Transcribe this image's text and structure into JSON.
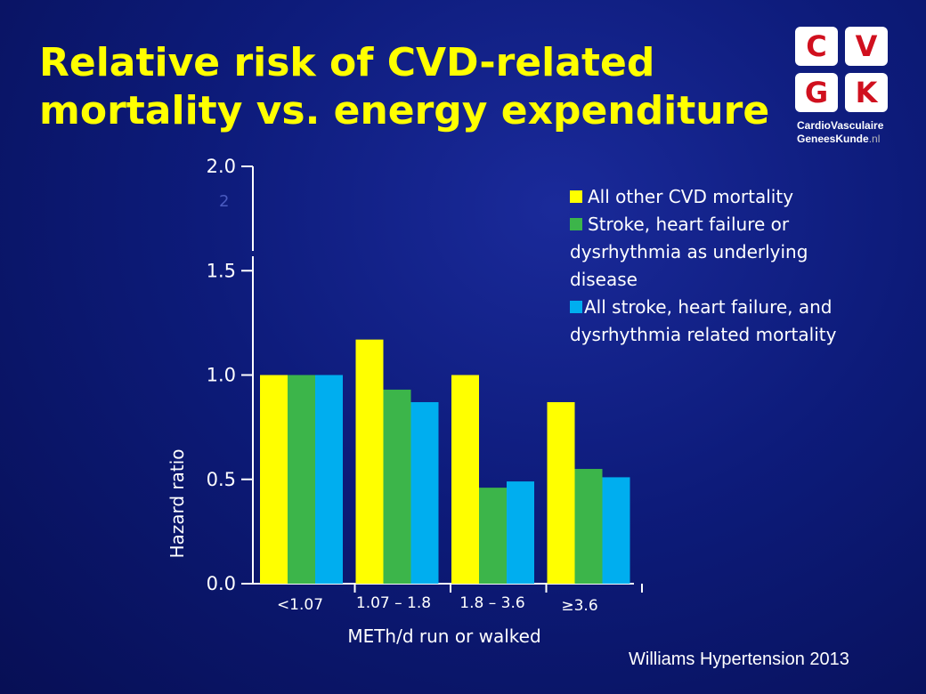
{
  "slide": {
    "title_line1": "Relative risk of CVD-related",
    "title_line2": "mortality vs. energy expenditure",
    "source": "Williams Hypertension 2013"
  },
  "logo": {
    "tiles": [
      "C",
      "V",
      "G",
      "K"
    ],
    "line1": "CardioVasculaire",
    "line2": "GeneesKunde",
    "line2_suffix": ".nl"
  },
  "chart_data": {
    "type": "bar",
    "categories": [
      "<1.07",
      "1.07 – 1.8",
      "1.8 – 3.6",
      "≥3.6"
    ],
    "series": [
      {
        "name": "All other CVD mortality",
        "color": "#ffff00",
        "values": [
          1.0,
          1.17,
          1.0,
          0.87
        ]
      },
      {
        "name": "Stroke, heart failure or dysrhythmia as underlying disease",
        "color": "#3cb54a",
        "values": [
          1.0,
          0.93,
          0.46,
          0.55
        ]
      },
      {
        "name": "All stroke, heart failure, and dysrhythmia related mortality",
        "color": "#00aeef",
        "values": [
          1.0,
          0.87,
          0.49,
          0.51
        ]
      }
    ],
    "legend": {
      "line1": "All other CVD mortality",
      "line2a": "Stroke, heart failure or",
      "line2b": "dysrhythmia as underlying",
      "line2c": "disease",
      "line3a": "All stroke, heart failure, and",
      "line3b": "dysrhythmia related mortality"
    },
    "y_ticks": [
      "0.0",
      "0.5",
      "1.0",
      "1.5",
      "2.0"
    ],
    "y_tick_values": [
      0,
      0.5,
      1.0,
      1.5,
      2.0
    ],
    "stray_label": "2",
    "ylabel": "Hazard ratio",
    "xlabel": "METh/d run or walked",
    "ylim": [
      0,
      2.0
    ],
    "legend_position": "top-right",
    "grid": false
  }
}
